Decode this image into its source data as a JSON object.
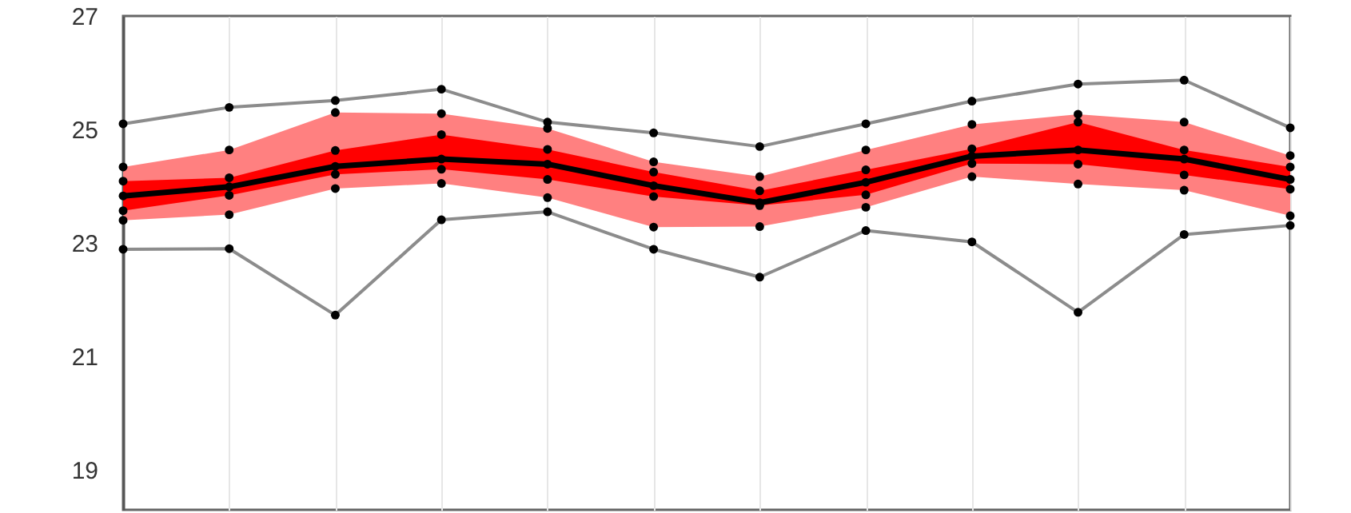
{
  "chart_data": {
    "type": "line",
    "categories": [
      null,
      null,
      null,
      null,
      null,
      null,
      null,
      null,
      null,
      null,
      null,
      null
    ],
    "ylim": [
      18.3,
      27
    ],
    "yticks": [
      19,
      21,
      23,
      25,
      27
    ],
    "grid": "x",
    "marker": "circle",
    "line_style": "solid",
    "series": [
      {
        "type": "scatter",
        "color": "#000000",
        "values": [
          24.34,
          24.64,
          25.3,
          25.28,
          25.02,
          24.43,
          24.17,
          24.64,
          25.09,
          25.27,
          25.13,
          24.54
        ]
      },
      {
        "type": "scatter",
        "color": "#000000",
        "values": [
          24.09,
          24.15,
          24.63,
          24.91,
          24.65,
          24.25,
          23.92,
          24.29,
          24.66,
          25.13,
          24.64,
          24.34
        ]
      },
      {
        "type": "scatter",
        "color": "#000000",
        "values": [
          23.57,
          23.84,
          24.21,
          24.3,
          24.12,
          23.82,
          23.66,
          23.85,
          24.4,
          24.39,
          24.2,
          23.95
        ]
      },
      {
        "type": "scatter",
        "color": "#000000",
        "values": [
          23.4,
          23.5,
          23.96,
          24.05,
          23.8,
          23.28,
          23.29,
          23.63,
          24.17,
          24.04,
          23.93,
          23.48
        ]
      },
      {
        "color": "#8c8c8c",
        "values": [
          25.1,
          25.39,
          25.51,
          25.71,
          25.13,
          24.94,
          24.7,
          25.1,
          25.5,
          25.8,
          25.87,
          25.03
        ]
      },
      {
        "color": "#8c8c8c",
        "values": [
          22.89,
          22.9,
          21.73,
          23.41,
          23.55,
          22.89,
          22.4,
          23.22,
          23.02,
          21.78,
          23.15,
          23.31
        ]
      },
      {
        "color": "#000000",
        "values": [
          23.83,
          23.99,
          24.35,
          24.48,
          24.39,
          24.01,
          23.71,
          24.07,
          24.53,
          24.64,
          24.48,
          24.12
        ]
      }
    ]
  }
}
